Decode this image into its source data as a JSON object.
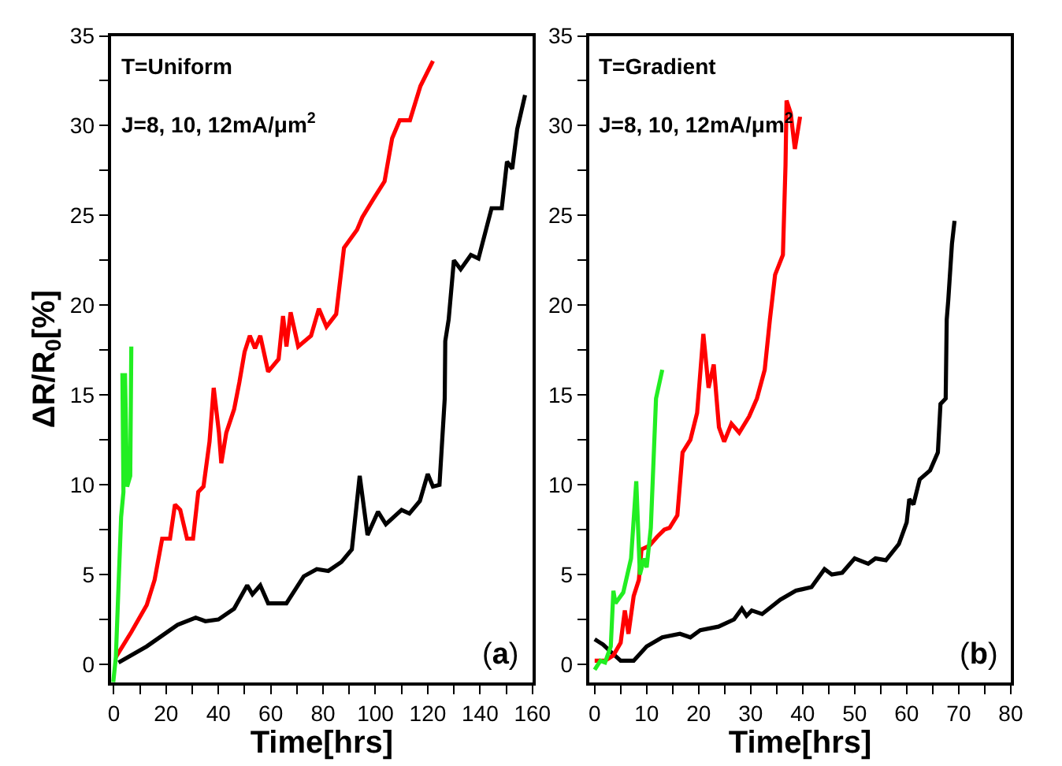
{
  "chart_data": [
    {
      "type": "line",
      "xlabel": "Time[hrs]",
      "ylabel": "ΔR/R$_{0}$[%]",
      "annotations": [
        "T=Uniform",
        "J=8, 10, 12mA/μm$^{2}$",
        "(a)"
      ],
      "xlim": [
        -1,
        160
      ],
      "ylim": [
        -1,
        35
      ],
      "xticks": [
        0,
        {
          "value": 10,
          "label": null
        },
        20,
        {
          "value": 30,
          "label": null
        },
        40,
        {
          "value": 50,
          "label": null
        },
        60,
        {
          "value": 70,
          "label": null
        },
        80,
        {
          "value": 90,
          "label": null
        },
        100,
        {
          "value": 110,
          "label": null
        },
        120,
        {
          "value": 130,
          "label": null
        },
        140,
        {
          "value": 150,
          "label": null
        },
        160
      ],
      "yticks": [
        0,
        {
          "value": 2.5,
          "label": null
        },
        5,
        {
          "value": 7.5,
          "label": null
        },
        10,
        {
          "value": 12.5,
          "label": null
        },
        15,
        {
          "value": 17.5,
          "label": null
        },
        20,
        {
          "value": 22.5,
          "label": null
        },
        25,
        {
          "value": 27.5,
          "label": null
        },
        30,
        {
          "value": 32.5,
          "label": null
        },
        35
      ],
      "marker": "none",
      "line_style": "solid",
      "series": [
        {
          "color": "#000000",
          "x": [
            1.8,
            12.6,
            24.4,
            31.3,
            35,
            40,
            46,
            51,
            53,
            56,
            59,
            66,
            72.6,
            77.6,
            82,
            87,
            91,
            94,
            97,
            101,
            104,
            110,
            113,
            117,
            120,
            122,
            124.5,
            126.5,
            126.7,
            128,
            130,
            132.6,
            136.5,
            139.4,
            144.4,
            148.3,
            150.3,
            152.3,
            154.2,
            157.2
          ],
          "values": [
            0.1,
            1.0,
            2.2,
            2.6,
            2.4,
            2.5,
            3.1,
            4.4,
            3.9,
            4.4,
            3.4,
            3.4,
            4.9,
            5.3,
            5.2,
            5.7,
            6.4,
            10.5,
            7.2,
            8.5,
            7.8,
            8.6,
            8.4,
            9.1,
            10.6,
            9.9,
            10.0,
            14.8,
            18.0,
            19.2,
            22.5,
            22.0,
            22.8,
            22.6,
            25.4,
            25.4,
            28.0,
            27.6,
            29.8,
            31.7
          ]
        },
        {
          "color": "#ff0000",
          "x": [
            0.8,
            6.7,
            12.6,
            15.6,
            18.5,
            21.5,
            23.4,
            25.4,
            28,
            30.3,
            32.3,
            34.3,
            36.6,
            38.2,
            40.2,
            41.1,
            43,
            46,
            48,
            50,
            52,
            54,
            56,
            59,
            63,
            64.7,
            66,
            67.6,
            70.5,
            75.4,
            78.4,
            81.3,
            85,
            88,
            93,
            95,
            99.6,
            103.5,
            106.4,
            109.3,
            113.2,
            117.2,
            122
          ],
          "values": [
            0.4,
            1.8,
            3.3,
            4.7,
            7.0,
            7.0,
            8.9,
            8.6,
            7.0,
            7.0,
            9.6,
            9.9,
            12.4,
            15.4,
            12.9,
            11.2,
            12.9,
            14.2,
            15.7,
            17.4,
            18.3,
            17.6,
            18.3,
            16.3,
            17.0,
            19.4,
            17.7,
            19.6,
            17.7,
            18.3,
            19.8,
            18.8,
            19.5,
            23.2,
            24.2,
            24.9,
            26.0,
            26.9,
            29.3,
            30.3,
            30.3,
            32.2,
            33.6
          ]
        },
        {
          "color": "#22ee22",
          "x": [
            -0.2,
            0.8,
            2.8,
            3.7,
            3.3,
            4.3,
            5.1,
            6.3,
            6.7
          ],
          "values": [
            -1.0,
            0.4,
            8.2,
            9.6,
            16.1,
            16.1,
            9.9,
            10.5,
            17.7
          ]
        }
      ]
    },
    {
      "type": "line",
      "xlabel": "Time[hrs]",
      "annotations": [
        "T=Gradient",
        "J=8, 10, 12mA/μm$^{2}$",
        "(b)"
      ],
      "xlim": [
        -1,
        80
      ],
      "ylim": [
        -1,
        35
      ],
      "xticks": [
        0,
        {
          "value": 5,
          "label": null
        },
        10,
        {
          "value": 15,
          "label": null
        },
        20,
        {
          "value": 25,
          "label": null
        },
        30,
        {
          "value": 35,
          "label": null
        },
        40,
        {
          "value": 45,
          "label": null
        },
        50,
        {
          "value": 55,
          "label": null
        },
        60,
        {
          "value": 65,
          "label": null
        },
        70,
        {
          "value": 75,
          "label": null
        },
        80
      ],
      "yticks": [
        0,
        {
          "value": 2.5,
          "label": null
        },
        5,
        {
          "value": 7.5,
          "label": null
        },
        10,
        {
          "value": 12.5,
          "label": null
        },
        15,
        {
          "value": 17.5,
          "label": null
        },
        20,
        {
          "value": 22.5,
          "label": null
        },
        25,
        {
          "value": 27.5,
          "label": null
        },
        30,
        {
          "value": 32.5,
          "label": null
        },
        35
      ],
      "marker": "none",
      "line_style": "solid",
      "series": [
        {
          "color": "#000000",
          "x": [
            0,
            1.6,
            3.1,
            5,
            7.5,
            10,
            13,
            16.4,
            18.4,
            20.3,
            23.8,
            26.8,
            28.3,
            29.2,
            30.2,
            32.2,
            35.7,
            38.7,
            41.7,
            44.2,
            45.6,
            47.6,
            50,
            52.6,
            54,
            56,
            58.5,
            60,
            60.5,
            61.3,
            62.5,
            64.5,
            66,
            66.5,
            67.5,
            67.7,
            68,
            68.7,
            69.2
          ],
          "values": [
            1.4,
            1.1,
            0.7,
            0.2,
            0.2,
            1.0,
            1.5,
            1.7,
            1.5,
            1.9,
            2.1,
            2.5,
            3.1,
            2.7,
            3.0,
            2.8,
            3.6,
            4.1,
            4.3,
            5.3,
            5.0,
            5.1,
            5.9,
            5.6,
            5.9,
            5.8,
            6.7,
            7.9,
            9.2,
            8.9,
            10.3,
            10.8,
            11.8,
            14.5,
            14.8,
            19.2,
            20.3,
            23.4,
            24.7
          ]
        },
        {
          "color": "#ff0000",
          "x": [
            0,
            2,
            3.6,
            5,
            5.8,
            6.5,
            7.5,
            8.5,
            9,
            10.5,
            12,
            13.4,
            14.4,
            15.9,
            16.9,
            18.4,
            19.7,
            20.9,
            21.9,
            22.9,
            23.9,
            24.9,
            26.3,
            27.8,
            29.7,
            31.2,
            32.7,
            33.7,
            34.7,
            36.2,
            36.7,
            36.9,
            37.7,
            38.5,
            39.5
          ],
          "values": [
            0.2,
            0.2,
            0.5,
            1.2,
            3.0,
            1.7,
            3.8,
            4.7,
            6.4,
            6.6,
            7.1,
            7.5,
            7.6,
            8.3,
            11.8,
            12.5,
            14.0,
            18.4,
            15.4,
            16.7,
            13.2,
            12.4,
            13.4,
            12.9,
            13.8,
            14.8,
            16.4,
            19.2,
            21.7,
            22.8,
            27.8,
            31.4,
            30.7,
            28.7,
            30.5
          ]
        },
        {
          "color": "#22ee22",
          "x": [
            0,
            1.1,
            2,
            3.1,
            3.6,
            4,
            5.5,
            7,
            8,
            8.7,
            9.5,
            10,
            10.8,
            11.8,
            13
          ],
          "values": [
            -0.3,
            0.2,
            0.1,
            1.0,
            4.1,
            3.4,
            4.0,
            5.9,
            10.2,
            5.0,
            5.9,
            5.4,
            7.6,
            14.8,
            16.4
          ]
        }
      ]
    }
  ]
}
